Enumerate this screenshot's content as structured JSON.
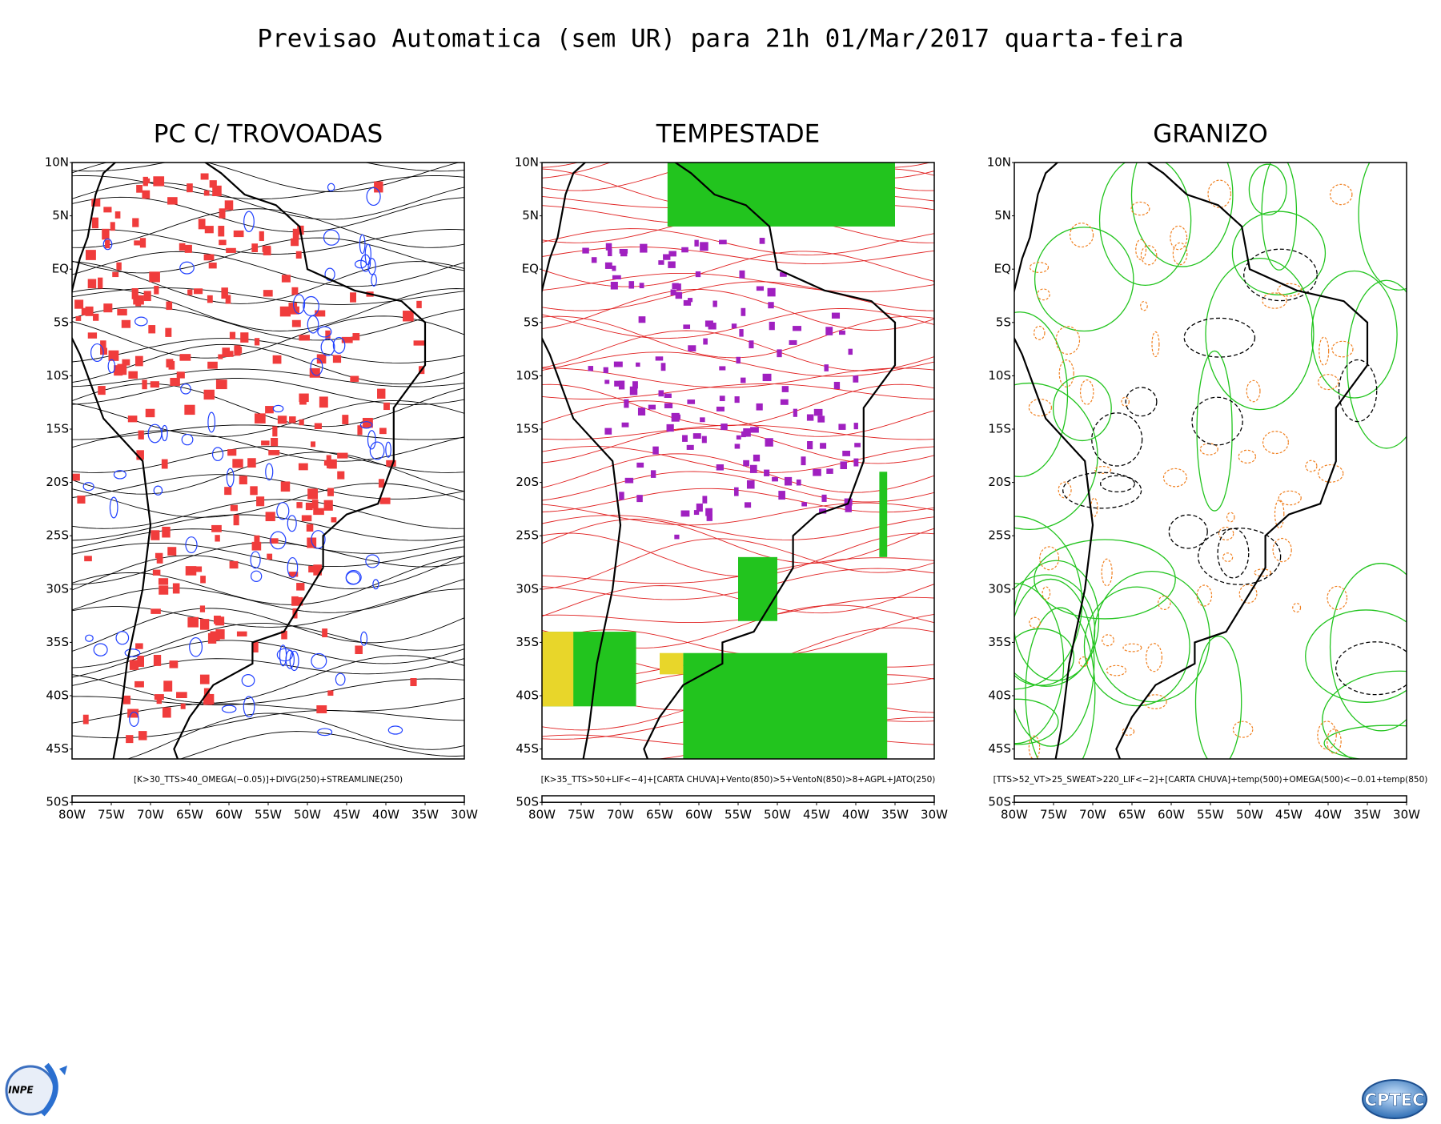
{
  "title": "Previsao Automatica (sem UR) para 21h 01/Mar/2017 quarta-feira",
  "panels": [
    {
      "title": "PC C/ TROVOADAS",
      "caption": "[K>30_TTS>40_OMEGA(−0.05)]+DIVG(250)+STREAMLINE(250)"
    },
    {
      "title": "TEMPESTADE",
      "caption": "[K>35_TTS>50+LIF<−4]+[CARTA CHUVA]+Vento(850)>5+VentoN(850)>8+AGPL+JATO(250)"
    },
    {
      "title": "GRANIZO",
      "caption": "[TTS>52_VT>25_SWEAT>220_LIF<−2]+[CARTA CHUVA]+temp(500)+OMEGA(500)<−0.01+temp(850)"
    }
  ],
  "lat_labels": [
    "10N",
    "5N",
    "EQ",
    "5S",
    "10S",
    "15S",
    "20S",
    "25S",
    "30S",
    "35S",
    "40S",
    "45S",
    "50S"
  ],
  "lon_labels": [
    "80W",
    "75W",
    "70W",
    "65W",
    "60W",
    "55W",
    "50W",
    "45W",
    "40W",
    "35W",
    "30W"
  ],
  "logos": {
    "left": "INPE",
    "right": "CPTEC"
  }
}
